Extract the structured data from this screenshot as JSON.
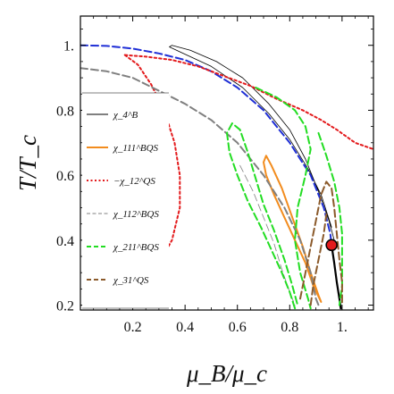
{
  "chart_data": {
    "type": "line",
    "xlabel": "μ_B/μ_c",
    "ylabel": "T/T_c",
    "xlim": [
      0.0,
      1.12
    ],
    "ylim": [
      0.185,
      1.09
    ],
    "x_ticks": [
      "0.2",
      "0.4",
      "0.6",
      "0.8",
      "1."
    ],
    "x_tick_values": [
      0.2,
      0.4,
      0.6,
      0.8,
      1.0
    ],
    "y_ticks": [
      "0.2",
      "0.4",
      "0.6",
      "0.8",
      "1."
    ],
    "y_tick_values": [
      0.2,
      0.4,
      0.6,
      0.8,
      1.0
    ],
    "legend_position": "left-inset",
    "legend": [
      {
        "label": "χ_4^B",
        "color": "#000000",
        "dash": "solid"
      },
      {
        "label": "χ_111^BQS",
        "color": "#f28c1e",
        "dash": "solid"
      },
      {
        "label": "−χ_12^QS",
        "color": "#e31a1c",
        "dash": "dotted"
      },
      {
        "label": "χ_112^BQS",
        "color": "#808080",
        "dash": "dashed-thin"
      },
      {
        "label": "χ_211^BQS",
        "color": "#22dd22",
        "dash": "dashed"
      },
      {
        "label": "χ_31^QS",
        "color": "#8b5a2b",
        "dash": "dashed"
      }
    ],
    "critical_point": {
      "x": 0.96,
      "y": 0.385,
      "color": "#e31a1c"
    },
    "series": [
      {
        "name": "χ_4^B",
        "color": "#000000",
        "dash": "solid",
        "width": 0.8,
        "points": [
          [
            0.97,
            0.4
          ],
          [
            0.95,
            0.46
          ],
          [
            0.91,
            0.55
          ],
          [
            0.86,
            0.65
          ],
          [
            0.8,
            0.74
          ],
          [
            0.72,
            0.82
          ],
          [
            0.62,
            0.9
          ],
          [
            0.52,
            0.95
          ],
          [
            0.42,
            0.985
          ],
          [
            0.35,
            1.0
          ],
          [
            0.34,
            0.995
          ],
          [
            0.38,
            0.98
          ],
          [
            0.5,
            0.935
          ],
          [
            0.62,
            0.87
          ],
          [
            0.72,
            0.79
          ],
          [
            0.8,
            0.71
          ],
          [
            0.87,
            0.62
          ],
          [
            0.92,
            0.54
          ],
          [
            0.96,
            0.44
          ]
        ]
      },
      {
        "name": "critical line",
        "color": "#000000",
        "dash": "solid",
        "width": 2.2,
        "points": [
          [
            0.96,
            0.385
          ],
          [
            0.97,
            0.33
          ],
          [
            0.98,
            0.27
          ],
          [
            0.99,
            0.22
          ],
          [
            0.995,
            0.19
          ]
        ]
      },
      {
        "name": "crossover",
        "color": "#1f2fd6",
        "dash": "dashed",
        "width": 2.0,
        "points": [
          [
            0.0,
            1.0
          ],
          [
            0.1,
            0.998
          ],
          [
            0.2,
            0.99
          ],
          [
            0.3,
            0.975
          ],
          [
            0.4,
            0.955
          ],
          [
            0.5,
            0.92
          ],
          [
            0.6,
            0.87
          ],
          [
            0.7,
            0.8
          ],
          [
            0.8,
            0.7
          ],
          [
            0.88,
            0.6
          ],
          [
            0.93,
            0.5
          ],
          [
            0.955,
            0.42
          ],
          [
            0.96,
            0.385
          ]
        ]
      },
      {
        "name": "χ_111^BQS",
        "color": "#f28c1e",
        "dash": "solid",
        "width": 2.0,
        "points": [
          [
            0.92,
            0.21
          ],
          [
            0.89,
            0.26
          ],
          [
            0.86,
            0.33
          ],
          [
            0.82,
            0.4
          ],
          [
            0.78,
            0.47
          ],
          [
            0.74,
            0.54
          ],
          [
            0.71,
            0.6
          ],
          [
            0.7,
            0.64
          ],
          [
            0.71,
            0.66
          ],
          [
            0.73,
            0.63
          ],
          [
            0.77,
            0.56
          ],
          [
            0.81,
            0.47
          ],
          [
            0.85,
            0.38
          ],
          [
            0.88,
            0.3
          ],
          [
            0.91,
            0.23
          ],
          [
            0.92,
            0.21
          ]
        ]
      },
      {
        "name": "−χ_12^QS",
        "color": "#e31a1c",
        "dash": "dotted",
        "width": 2.0,
        "points": [
          [
            0.17,
            0.97
          ],
          [
            0.25,
            0.965
          ],
          [
            0.35,
            0.955
          ],
          [
            0.45,
            0.935
          ],
          [
            0.55,
            0.905
          ],
          [
            0.65,
            0.875
          ],
          [
            0.75,
            0.835
          ],
          [
            0.85,
            0.8
          ],
          [
            0.92,
            0.77
          ],
          [
            0.98,
            0.74
          ],
          [
            1.05,
            0.7
          ],
          [
            1.12,
            0.68
          ]
        ]
      },
      {
        "name": "−χ_12^QS lower",
        "color": "#e31a1c",
        "dash": "dotted",
        "width": 2.0,
        "points": [
          [
            0.17,
            0.97
          ],
          [
            0.22,
            0.94
          ],
          [
            0.27,
            0.88
          ],
          [
            0.32,
            0.8
          ],
          [
            0.36,
            0.7
          ],
          [
            0.38,
            0.6
          ],
          [
            0.38,
            0.5
          ],
          [
            0.35,
            0.4
          ],
          [
            0.3,
            0.33
          ],
          [
            0.25,
            0.29
          ]
        ]
      },
      {
        "name": "χ_112^BQS",
        "color": "#808080",
        "dash": "dashed",
        "width": 2.0,
        "points": [
          [
            0.0,
            0.93
          ],
          [
            0.1,
            0.92
          ],
          [
            0.2,
            0.9
          ],
          [
            0.3,
            0.86
          ],
          [
            0.4,
            0.82
          ],
          [
            0.5,
            0.77
          ],
          [
            0.6,
            0.7
          ],
          [
            0.7,
            0.6
          ],
          [
            0.78,
            0.5
          ],
          [
            0.84,
            0.4
          ],
          [
            0.88,
            0.3
          ],
          [
            0.9,
            0.22
          ],
          [
            0.91,
            0.2
          ]
        ]
      },
      {
        "name": "χ_112^BQS thin",
        "color": "#808080",
        "dash": "dashed",
        "width": 0.8,
        "points": [
          [
            0.61,
            0.63
          ],
          [
            0.66,
            0.55
          ],
          [
            0.7,
            0.47
          ],
          [
            0.74,
            0.39
          ],
          [
            0.77,
            0.31
          ],
          [
            0.8,
            0.24
          ],
          [
            0.82,
            0.2
          ]
        ]
      },
      {
        "name": "χ_211^BQS outer",
        "color": "#22dd22",
        "dash": "dashed",
        "width": 2.0,
        "points": [
          [
            0.67,
            0.87
          ],
          [
            0.75,
            0.84
          ],
          [
            0.82,
            0.8
          ],
          [
            0.86,
            0.75
          ],
          [
            0.88,
            0.68
          ],
          [
            0.86,
            0.6
          ],
          [
            0.83,
            0.5
          ],
          [
            0.82,
            0.4
          ],
          [
            0.84,
            0.3
          ],
          [
            0.87,
            0.22
          ],
          [
            0.88,
            0.19
          ]
        ]
      },
      {
        "name": "χ_211^BQS inner",
        "color": "#22dd22",
        "dash": "dashed",
        "width": 2.0,
        "points": [
          [
            0.82,
            0.19
          ],
          [
            0.8,
            0.24
          ],
          [
            0.77,
            0.3
          ],
          [
            0.73,
            0.37
          ],
          [
            0.69,
            0.44
          ],
          [
            0.64,
            0.52
          ],
          [
            0.6,
            0.6
          ],
          [
            0.57,
            0.67
          ],
          [
            0.56,
            0.73
          ],
          [
            0.58,
            0.76
          ],
          [
            0.61,
            0.74
          ],
          [
            0.64,
            0.67
          ],
          [
            0.67,
            0.59
          ],
          [
            0.7,
            0.51
          ],
          [
            0.74,
            0.43
          ],
          [
            0.78,
            0.34
          ],
          [
            0.81,
            0.26
          ],
          [
            0.83,
            0.2
          ]
        ]
      },
      {
        "name": "χ_211^BQS right",
        "color": "#22dd22",
        "dash": "dashed",
        "width": 2.0,
        "points": [
          [
            0.91,
            0.73
          ],
          [
            0.94,
            0.66
          ],
          [
            0.97,
            0.58
          ],
          [
            0.99,
            0.5
          ],
          [
            1.0,
            0.42
          ],
          [
            1.0,
            0.34
          ],
          [
            1.0,
            0.26
          ],
          [
            0.99,
            0.2
          ]
        ]
      },
      {
        "name": "χ_31^QS",
        "color": "#8b5a2b",
        "dash": "dashed",
        "width": 2.0,
        "points": [
          [
            0.84,
            0.22
          ],
          [
            0.86,
            0.3
          ],
          [
            0.88,
            0.38
          ],
          [
            0.9,
            0.46
          ],
          [
            0.92,
            0.54
          ],
          [
            0.94,
            0.58
          ],
          [
            0.96,
            0.56
          ],
          [
            0.97,
            0.5
          ],
          [
            0.98,
            0.42
          ],
          [
            0.99,
            0.34
          ],
          [
            1.0,
            0.27
          ],
          [
            1.0,
            0.2
          ]
        ]
      },
      {
        "name": "χ_31^QS inner",
        "color": "#8b5a2b",
        "dash": "dashed",
        "width": 2.0,
        "points": [
          [
            0.88,
            0.2
          ],
          [
            0.89,
            0.26
          ],
          [
            0.91,
            0.34
          ],
          [
            0.93,
            0.42
          ],
          [
            0.94,
            0.48
          ]
        ]
      }
    ]
  }
}
